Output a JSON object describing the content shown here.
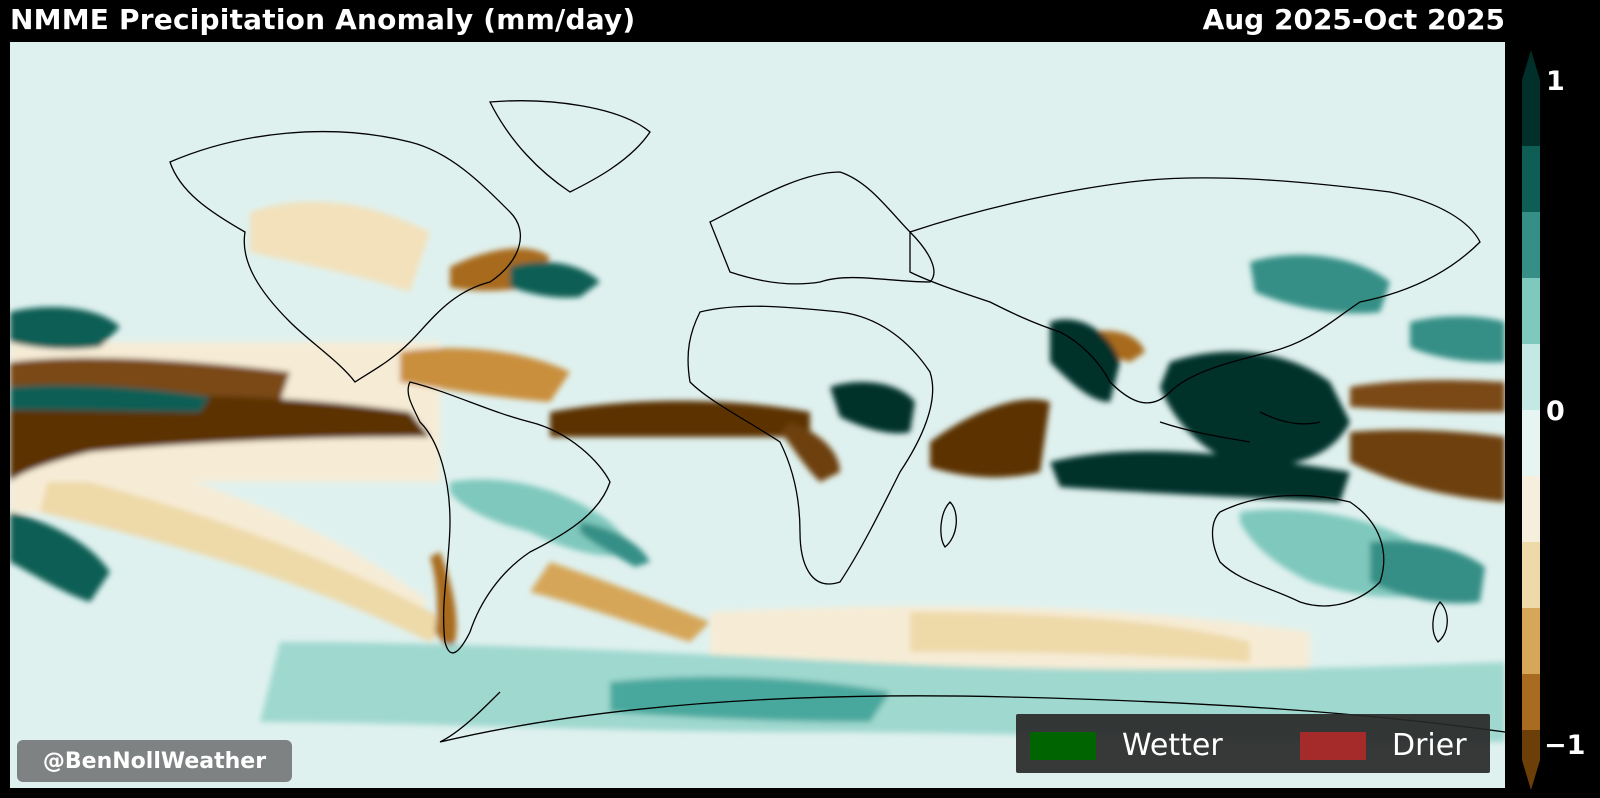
{
  "title": "NMME Precipitation Anomaly (mm/day)",
  "period": "Aug 2025-Oct 2025",
  "colorbar": {
    "max_label": "1",
    "mid_label": "0",
    "min_label": "−1",
    "colors_wet_to_dry": [
      "#01302a",
      "#0e5e55",
      "#358f86",
      "#7fc8bd",
      "#c4e9e4",
      "#e6f5f2",
      "#f7efdd",
      "#eed9a8",
      "#d6a659",
      "#a86b1f",
      "#6d3f08"
    ]
  },
  "legend": {
    "wetter_label": "Wetter",
    "wetter_color": "#006400",
    "drier_label": "Drier",
    "drier_color": "#a52a2a"
  },
  "watermark": "@BenNollWeather",
  "colors": {
    "background": "#dff1ef",
    "strong_wet": "#01302a",
    "wet": "#2a8a80",
    "light_wet": "#9fd8cf",
    "light_dry": "#f6ecd6",
    "dry": "#d6a659",
    "strong_dry": "#5c3306",
    "coastline": "#000000"
  }
}
